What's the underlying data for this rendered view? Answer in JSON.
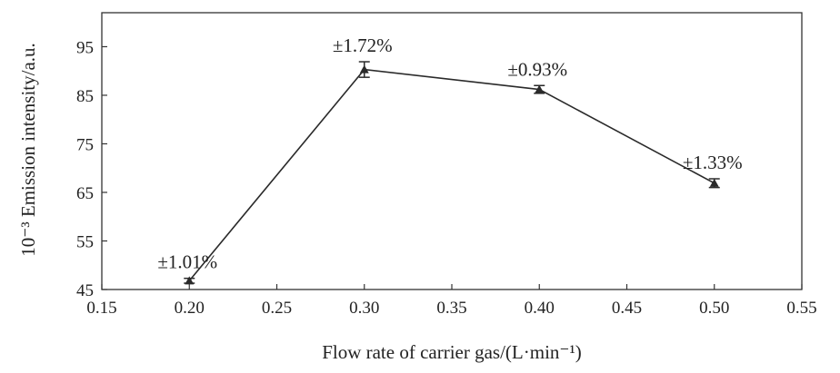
{
  "chart_data": {
    "type": "line",
    "xlabel": "Flow rate of carrier gas/(L·min⁻¹)",
    "ylabel": "10⁻³ Emission intensity/a.u.",
    "xlim": [
      0.15,
      0.55
    ],
    "ylim": [
      45,
      102
    ],
    "xticks": [
      "0.15",
      "0.20",
      "0.25",
      "0.30",
      "0.35",
      "0.40",
      "0.45",
      "0.50",
      "0.55"
    ],
    "yticks": [
      "45",
      "55",
      "65",
      "75",
      "85",
      "95"
    ],
    "grid": false,
    "series": [
      {
        "x": [
          0.2,
          0.3,
          0.4,
          0.5
        ],
        "values": [
          46.8,
          90.3,
          86.2,
          66.9
        ],
        "error": [
          0.5,
          1.6,
          0.8,
          0.9
        ],
        "labels": [
          "±1.01%",
          "±1.72%",
          "±0.93%",
          "±1.33%"
        ]
      }
    ]
  }
}
